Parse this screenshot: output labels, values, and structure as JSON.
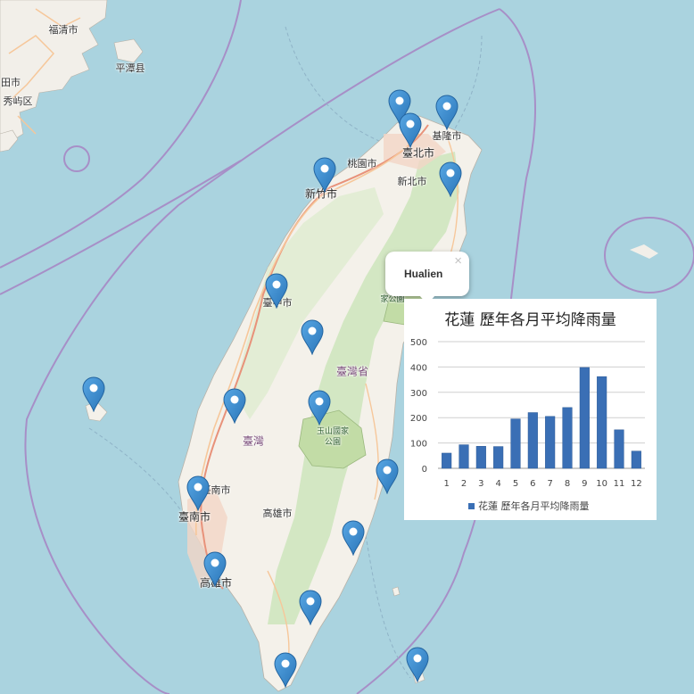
{
  "map": {
    "labels": [
      {
        "id": "fuqing",
        "text": "福清市",
        "big": false
      },
      {
        "id": "pingtan",
        "text": "平潭县",
        "big": false
      },
      {
        "id": "putian",
        "text": "田市",
        "big": false
      },
      {
        "id": "xiuyu",
        "text": "秀屿区",
        "big": false
      },
      {
        "id": "keelung",
        "text": "基隆市",
        "big": false
      },
      {
        "id": "taipei",
        "text": "臺北市",
        "big": true
      },
      {
        "id": "taoyuan",
        "text": "桃園市",
        "big": false
      },
      {
        "id": "newtaipei",
        "text": "新北市",
        "big": false
      },
      {
        "id": "hsinchu",
        "text": "新竹市",
        "big": true
      },
      {
        "id": "taichung",
        "text": "臺中市",
        "big": false
      },
      {
        "id": "taiwanprov",
        "text": "臺灣省",
        "big": false
      },
      {
        "id": "taiwan",
        "text": "臺灣",
        "big": true
      },
      {
        "id": "tainan",
        "text": "臺南市",
        "big": true
      },
      {
        "id": "tainan2",
        "text": "臺南市",
        "big": false
      },
      {
        "id": "kaohsiung",
        "text": "高雄市",
        "big": false
      },
      {
        "id": "kaohsiung2",
        "text": "高雄市",
        "big": true
      }
    ],
    "park_label_line1": "玉山國家",
    "park_label_line2": "公園",
    "park2_label_line1": "太",
    "park2_label_line2": "家公園"
  },
  "markers": [
    {
      "id": "tamsui"
    },
    {
      "id": "keelung"
    },
    {
      "id": "taipei"
    },
    {
      "id": "yilan-north"
    },
    {
      "id": "hsinchu"
    },
    {
      "id": "taichung"
    },
    {
      "id": "sun-moon"
    },
    {
      "id": "penghu"
    },
    {
      "id": "chiayi"
    },
    {
      "id": "yushan"
    },
    {
      "id": "tainan"
    },
    {
      "id": "chenggong"
    },
    {
      "id": "taitung"
    },
    {
      "id": "kaohsiung"
    },
    {
      "id": "dawu"
    },
    {
      "id": "hengchun"
    },
    {
      "id": "lanyu"
    }
  ],
  "popup": {
    "title": "Hualien",
    "close_label": "×"
  },
  "chart_data": {
    "type": "bar",
    "title": "花蓮 歷年各月平均降雨量",
    "categories": [
      "1",
      "2",
      "3",
      "4",
      "5",
      "6",
      "7",
      "8",
      "9",
      "10",
      "11",
      "12"
    ],
    "series": [
      {
        "name": "花蓮 歷年各月平均降雨量",
        "values": [
          60,
          93,
          87,
          86,
          195,
          220,
          205,
          240,
          398,
          362,
          152,
          68
        ]
      }
    ],
    "y_ticks": [
      "0",
      "100",
      "200",
      "300",
      "400",
      "500"
    ],
    "ylim": [
      0,
      500
    ],
    "grid": true,
    "legend": "bottom",
    "bar_color": "#3a6fb5"
  }
}
